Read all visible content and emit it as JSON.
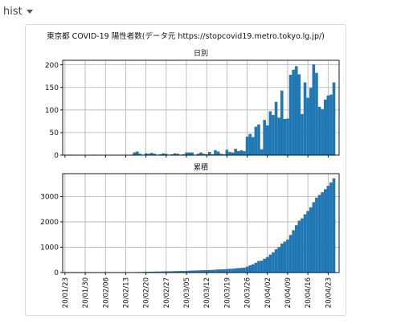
{
  "header": {
    "selector_label": "hist"
  },
  "figure_title": "東京都 COVID-19 陽性者数(データ元 https://stopcovid19.metro.tokyo.lg.jp/)",
  "colors": {
    "bar": "#1f77b4",
    "grid": "#b0b0b0",
    "axis": "#000000"
  },
  "chart_data": [
    {
      "type": "bar",
      "title": "日別",
      "xlabel": "",
      "ylabel": "",
      "ylim": [
        0,
        210
      ],
      "yticks": [
        0,
        50,
        100,
        150,
        200
      ],
      "grid": true,
      "x_start": "2020-01-24",
      "x_ticks": [
        "20/01/23",
        "20/01/30",
        "20/02/06",
        "20/02/13",
        "20/02/20",
        "20/02/27",
        "20/03/05",
        "20/03/12",
        "20/03/19",
        "20/03/26",
        "20/04/02",
        "20/04/09",
        "20/04/16",
        "20/04/23"
      ],
      "values": [
        1,
        1,
        0,
        0,
        0,
        0,
        0,
        0,
        0,
        1,
        0,
        0,
        0,
        0,
        0,
        0,
        0,
        0,
        0,
        0,
        1,
        0,
        1,
        6,
        8,
        3,
        1,
        4,
        3,
        5,
        3,
        1,
        2,
        4,
        3,
        1,
        2,
        4,
        3,
        1,
        2,
        6,
        6,
        6,
        1,
        3,
        6,
        3,
        2,
        7,
        2,
        11,
        8,
        3,
        2,
        12,
        7,
        6,
        14,
        9,
        11,
        9,
        41,
        47,
        40,
        63,
        68,
        13,
        78,
        66,
        97,
        89,
        118,
        83,
        143,
        80,
        81,
        178,
        189,
        197,
        179,
        91,
        161,
        127,
        149,
        201,
        182,
        107,
        102,
        123,
        132,
        134,
        161
      ]
    },
    {
      "type": "bar",
      "title": "累積",
      "xlabel": "",
      "ylabel": "",
      "ylim": [
        0,
        3900
      ],
      "yticks": [
        0,
        1000,
        2000,
        3000
      ],
      "grid": true,
      "x_start": "2020-01-24",
      "x_ticks": [
        "20/01/23",
        "20/01/30",
        "20/02/06",
        "20/02/13",
        "20/02/20",
        "20/02/27",
        "20/03/05",
        "20/03/12",
        "20/03/19",
        "20/03/26",
        "20/04/02",
        "20/04/09",
        "20/04/16",
        "20/04/23"
      ],
      "values": [
        1,
        2,
        2,
        2,
        2,
        2,
        2,
        2,
        2,
        3,
        3,
        3,
        3,
        3,
        3,
        3,
        3,
        3,
        3,
        3,
        4,
        4,
        5,
        11,
        19,
        22,
        23,
        27,
        30,
        35,
        38,
        39,
        41,
        45,
        48,
        49,
        51,
        55,
        58,
        59,
        61,
        67,
        73,
        79,
        80,
        83,
        89,
        92,
        94,
        101,
        103,
        114,
        122,
        125,
        127,
        139,
        146,
        152,
        166,
        175,
        186,
        195,
        236,
        283,
        323,
        386,
        454,
        467,
        545,
        611,
        708,
        797,
        915,
        998,
        1141,
        1221,
        1302,
        1480,
        1669,
        1866,
        2045,
        2136,
        2297,
        2424,
        2573,
        2774,
        2956,
        3063,
        3165,
        3288,
        3420,
        3554,
        3715
      ]
    }
  ]
}
